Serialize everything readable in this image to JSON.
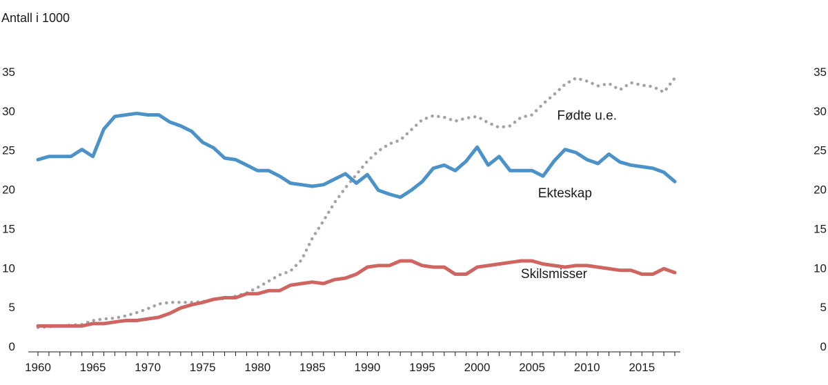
{
  "chart_data": {
    "type": "line",
    "ylabel": "Antall i 1000",
    "ylim": [
      0,
      35
    ],
    "xlim": [
      1960,
      2018
    ],
    "y_ticks": [
      0,
      5,
      10,
      15,
      20,
      25,
      30,
      35
    ],
    "x_ticks": [
      1960,
      1965,
      1970,
      1975,
      1980,
      1985,
      1990,
      1995,
      2000,
      2005,
      2010,
      2015
    ],
    "grid": false,
    "x": [
      1960,
      1961,
      1962,
      1963,
      1964,
      1965,
      1966,
      1967,
      1968,
      1969,
      1970,
      1971,
      1972,
      1973,
      1974,
      1975,
      1976,
      1977,
      1978,
      1979,
      1980,
      1981,
      1982,
      1983,
      1984,
      1985,
      1986,
      1987,
      1988,
      1989,
      1990,
      1991,
      1992,
      1993,
      1994,
      1995,
      1996,
      1997,
      1998,
      1999,
      2000,
      2001,
      2002,
      2003,
      2004,
      2005,
      2006,
      2007,
      2008,
      2009,
      2010,
      2011,
      2012,
      2013,
      2014,
      2015,
      2016,
      2017,
      2018
    ],
    "series": [
      {
        "name": "Fødte u.e.",
        "color": "#a3a3a3",
        "style": "dotted",
        "values": [
          2.4,
          2.5,
          2.6,
          2.7,
          2.8,
          3.3,
          3.5,
          3.6,
          3.9,
          4.3,
          4.8,
          5.4,
          5.6,
          5.6,
          5.6,
          5.7,
          6.0,
          6.1,
          6.4,
          6.8,
          7.5,
          8.3,
          9.1,
          9.6,
          11.0,
          13.8,
          16.0,
          18.3,
          20.2,
          21.9,
          23.6,
          24.9,
          25.8,
          26.3,
          27.6,
          28.9,
          29.4,
          29.2,
          28.7,
          29.1,
          29.3,
          28.5,
          27.9,
          28.1,
          29.2,
          29.5,
          30.9,
          32.1,
          33.4,
          34.2,
          33.8,
          33.2,
          33.5,
          32.7,
          33.6,
          33.3,
          33.1,
          32.4,
          34.2
        ]
      },
      {
        "name": "Ekteskap",
        "color": "#4b92c9",
        "style": "solid",
        "values": [
          23.8,
          24.2,
          24.2,
          24.2,
          25.1,
          24.2,
          27.7,
          29.3,
          29.5,
          29.7,
          29.5,
          29.5,
          28.6,
          28.1,
          27.4,
          26.0,
          25.3,
          24.0,
          23.8,
          23.1,
          22.4,
          22.4,
          21.7,
          20.8,
          20.6,
          20.4,
          20.6,
          21.3,
          22.0,
          20.8,
          21.9,
          19.9,
          19.4,
          19.0,
          19.9,
          21.0,
          22.7,
          23.1,
          22.4,
          23.6,
          25.4,
          23.1,
          24.2,
          22.4,
          22.4,
          22.4,
          21.7,
          23.6,
          25.1,
          24.7,
          23.8,
          23.3,
          24.5,
          23.5,
          23.1,
          22.9,
          22.7,
          22.2,
          21.0
        ]
      },
      {
        "name": "Skilsmisser",
        "color": "#cf6561",
        "style": "solid",
        "values": [
          2.6,
          2.6,
          2.6,
          2.6,
          2.6,
          2.9,
          2.9,
          3.1,
          3.3,
          3.3,
          3.5,
          3.7,
          4.2,
          4.9,
          5.3,
          5.6,
          6.0,
          6.2,
          6.2,
          6.7,
          6.7,
          7.1,
          7.1,
          7.8,
          8.0,
          8.2,
          8.0,
          8.5,
          8.7,
          9.2,
          10.1,
          10.3,
          10.3,
          10.9,
          10.9,
          10.3,
          10.1,
          10.1,
          9.2,
          9.2,
          10.1,
          10.3,
          10.5,
          10.7,
          10.9,
          10.9,
          10.5,
          10.3,
          10.1,
          10.3,
          10.3,
          10.1,
          9.9,
          9.7,
          9.7,
          9.2,
          9.2,
          9.9,
          9.4
        ]
      }
    ],
    "annotations": [
      {
        "text": "Fødte u.e.",
        "x": 2010,
        "y": 29.5
      },
      {
        "text": "Ekteskap",
        "x": 2008,
        "y": 19.6
      },
      {
        "text": "Skilsmisser",
        "x": 2007,
        "y": 9.3
      }
    ]
  }
}
